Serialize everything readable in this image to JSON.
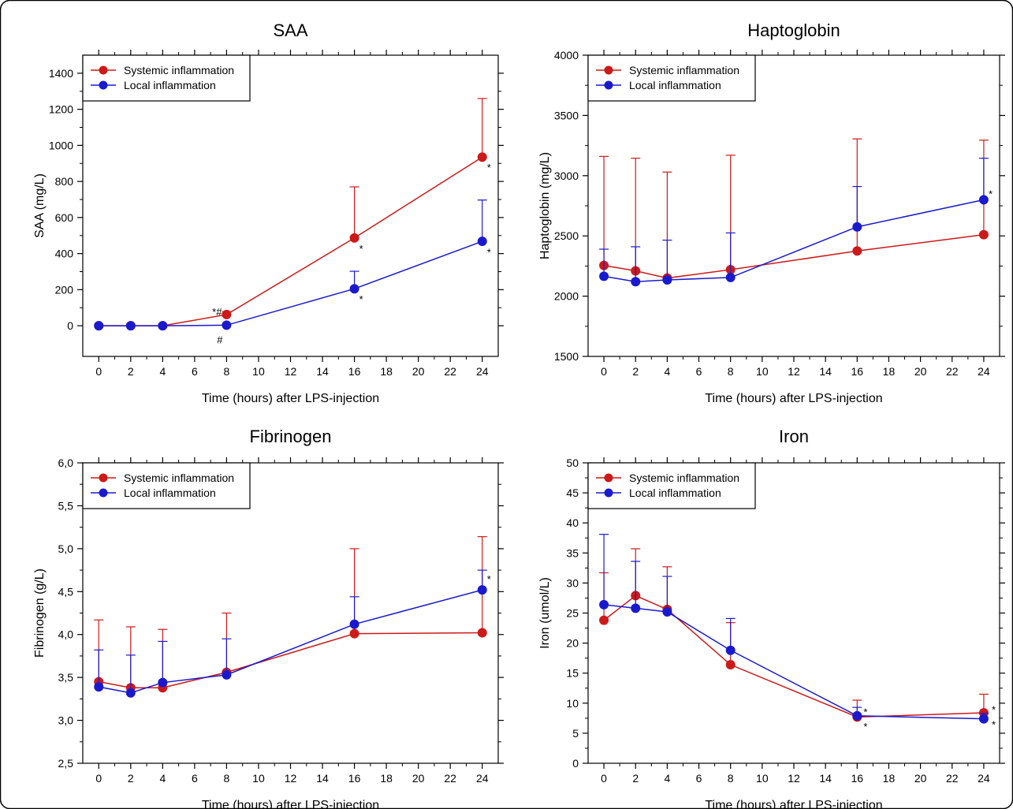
{
  "colors": {
    "systemic": "#cc1a1a",
    "local": "#1a1acc",
    "axis": "#000000",
    "border": "#000000"
  },
  "chart_data": [
    {
      "type": "line",
      "title": "SAA",
      "xlabel": "Time (hours) after LPS-injection",
      "ylabel": "SAA (mg/L)",
      "xlim": [
        -1,
        25
      ],
      "ylim": [
        -170,
        1500
      ],
      "xticks": [
        0,
        2,
        4,
        6,
        8,
        10,
        12,
        14,
        16,
        18,
        20,
        22,
        24
      ],
      "xtick_labels": [
        "0",
        "2",
        "4",
        "6",
        "8",
        "10",
        "12",
        "14",
        "16",
        "18",
        "20",
        "22",
        "24"
      ],
      "yticks": [
        0,
        200,
        400,
        600,
        800,
        1000,
        1200,
        1400
      ],
      "ytick_labels": [
        "0",
        "200",
        "400",
        "600",
        "800",
        "1000",
        "1200",
        "1400"
      ],
      "legend_position": "top-left",
      "series": [
        {
          "name": "Systemic inflammation",
          "x": [
            0,
            2,
            4,
            8,
            16,
            24
          ],
          "y": [
            0,
            0,
            0,
            62,
            487,
            935
          ],
          "err_upper": [
            0,
            0,
            0,
            78,
            770,
            1260
          ]
        },
        {
          "name": "Local inflammation",
          "x": [
            0,
            2,
            4,
            8,
            16,
            24
          ],
          "y": [
            0,
            0,
            0,
            3,
            205,
            468
          ],
          "err_upper": [
            0,
            0,
            0,
            3,
            302,
            697
          ]
        }
      ],
      "annotations": [
        {
          "text": "*#",
          "x": 7.1,
          "y": 80
        },
        {
          "text": "#",
          "x": 7.4,
          "y": -75
        },
        {
          "text": "*",
          "x": 16.3,
          "y": 430
        },
        {
          "text": "*",
          "x": 16.3,
          "y": 150
        },
        {
          "text": "*",
          "x": 24.3,
          "y": 880
        },
        {
          "text": "*",
          "x": 24.3,
          "y": 410
        }
      ]
    },
    {
      "type": "line",
      "title": "Haptoglobin",
      "xlabel": "Time (hours) after LPS-injection",
      "ylabel": "Haptoglobin (mg/L)",
      "xlim": [
        -1,
        25
      ],
      "ylim": [
        1500,
        4000
      ],
      "xticks": [
        0,
        2,
        4,
        6,
        8,
        10,
        12,
        14,
        16,
        18,
        20,
        22,
        24
      ],
      "xtick_labels": [
        "0",
        "2",
        "4",
        "6",
        "8",
        "10",
        "12",
        "14",
        "16",
        "18",
        "20",
        "22",
        "24"
      ],
      "yticks": [
        1500,
        2000,
        2500,
        3000,
        3500,
        4000
      ],
      "ytick_labels": [
        "1500",
        "2000",
        "2500",
        "3000",
        "3500",
        "4000"
      ],
      "legend_position": "top-left",
      "series": [
        {
          "name": "Systemic inflammation",
          "x": [
            0,
            2,
            4,
            8,
            16,
            24
          ],
          "y": [
            2255,
            2210,
            2150,
            2220,
            2375,
            2510
          ],
          "err_upper": [
            3160,
            3145,
            3030,
            3170,
            3305,
            3295
          ]
        },
        {
          "name": "Local inflammation",
          "x": [
            0,
            2,
            4,
            8,
            16,
            24
          ],
          "y": [
            2165,
            2120,
            2135,
            2155,
            2575,
            2800
          ],
          "err_upper": [
            2390,
            2410,
            2465,
            2525,
            2910,
            3145
          ]
        }
      ],
      "annotations": [
        {
          "text": "*",
          "x": 24.3,
          "y": 2850
        }
      ]
    },
    {
      "type": "line",
      "title": "Fibrinogen",
      "xlabel": "Time (hours) after LPS-injection",
      "ylabel": "Fibrinogen (g/L)",
      "xlim": [
        -1,
        25
      ],
      "ylim": [
        2.5,
        6.0
      ],
      "xticks": [
        0,
        2,
        4,
        6,
        8,
        10,
        12,
        14,
        16,
        18,
        20,
        22,
        24
      ],
      "xtick_labels": [
        "0",
        "2",
        "4",
        "6",
        "8",
        "10",
        "12",
        "14",
        "16",
        "18",
        "20",
        "22",
        "24"
      ],
      "yticks": [
        2.5,
        3.0,
        3.5,
        4.0,
        4.5,
        5.0,
        5.5,
        6.0
      ],
      "ytick_labels": [
        "2,5",
        "3,0",
        "3,5",
        "4,0",
        "4,5",
        "5,0",
        "5,5",
        "6,0"
      ],
      "legend_position": "top-left",
      "series": [
        {
          "name": "Systemic inflammation",
          "x": [
            0,
            2,
            4,
            8,
            16,
            24
          ],
          "y": [
            3.45,
            3.38,
            3.38,
            3.56,
            4.01,
            4.02
          ],
          "err_upper": [
            4.17,
            4.09,
            4.06,
            4.25,
            5.0,
            5.14
          ]
        },
        {
          "name": "Local inflammation",
          "x": [
            0,
            2,
            4,
            8,
            16,
            24
          ],
          "y": [
            3.39,
            3.32,
            3.44,
            3.53,
            4.12,
            4.52
          ],
          "err_upper": [
            3.82,
            3.76,
            3.92,
            3.95,
            4.44,
            4.75
          ]
        }
      ],
      "annotations": [
        {
          "text": "*",
          "x": 24.3,
          "y": 4.65
        }
      ]
    },
    {
      "type": "line",
      "title": "Iron",
      "xlabel": "Time (hours) after LPS-injection",
      "ylabel": "Iron (umol/L)",
      "xlim": [
        -1,
        25
      ],
      "ylim": [
        0,
        50
      ],
      "xticks": [
        0,
        2,
        4,
        6,
        8,
        10,
        12,
        14,
        16,
        18,
        20,
        22,
        24
      ],
      "xtick_labels": [
        "0",
        "2",
        "4",
        "6",
        "8",
        "10",
        "12",
        "14",
        "16",
        "18",
        "20",
        "22",
        "24"
      ],
      "yticks": [
        0,
        5,
        10,
        15,
        20,
        25,
        30,
        35,
        40,
        45,
        50
      ],
      "ytick_labels": [
        "0",
        "5",
        "10",
        "15",
        "20",
        "25",
        "30",
        "35",
        "40",
        "45",
        "50"
      ],
      "legend_position": "top-left",
      "series": [
        {
          "name": "Systemic inflammation",
          "x": [
            0,
            2,
            4,
            8,
            16,
            24
          ],
          "y": [
            23.8,
            27.9,
            25.6,
            16.4,
            7.7,
            8.4
          ],
          "err_upper": [
            31.7,
            35.7,
            32.7,
            23.4,
            10.5,
            11.5
          ]
        },
        {
          "name": "Local inflammation",
          "x": [
            0,
            2,
            4,
            8,
            16,
            24
          ],
          "y": [
            26.4,
            25.8,
            25.2,
            18.8,
            7.9,
            7.4
          ],
          "err_upper": [
            38.1,
            33.6,
            31.1,
            24.1,
            9.3,
            8.3
          ]
        }
      ],
      "annotations": [
        {
          "text": "*",
          "x": 16.4,
          "y": 8.6
        },
        {
          "text": "*",
          "x": 16.4,
          "y": 6.2
        },
        {
          "text": "*",
          "x": 24.5,
          "y": 9.0
        },
        {
          "text": "*",
          "x": 24.5,
          "y": 6.5
        }
      ]
    }
  ]
}
